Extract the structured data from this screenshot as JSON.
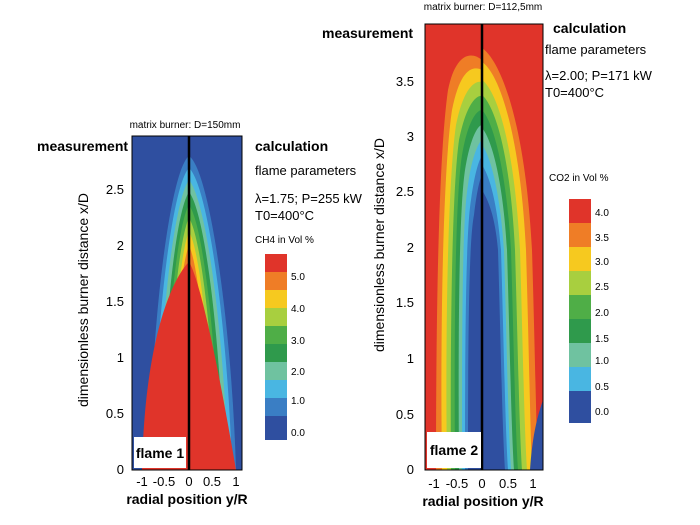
{
  "chart_data": [
    {
      "type": "heatmap",
      "subtitle": "matrix burner: D=150mm",
      "measurement_label": "measurement",
      "calculation_label": "calculation",
      "params_title": "flame parameters",
      "params_line1": "λ=1.75; P=255 kW",
      "params_line2": "T0=400°C",
      "flame_label": "flame 1",
      "xlabel": "radial position y/R",
      "ylabel": "dimensionless burner distance x/D",
      "xlim": [
        -1.2,
        1.2
      ],
      "ylim": [
        0,
        2.95
      ],
      "x_ticks": [
        "-1",
        "-0.5",
        "0",
        "0.5",
        "1"
      ],
      "y_ticks": [
        "0",
        "0.5",
        "1",
        "1.5",
        "2",
        "2.5"
      ],
      "colorbar_title": "CH4 in Vol %",
      "colorbar_ticks": [
        "5.0",
        "4.0",
        "3.0",
        "2.0",
        "1.0",
        "0.0"
      ],
      "colorbar_colors": [
        "#e0342a",
        "#ef7d26",
        "#f6c91f",
        "#a8cf3f",
        "#4fae47",
        "#2f9a4c",
        "#6fc2a0",
        "#49b6e2",
        "#3a7ec4",
        "#2f4fa0"
      ]
    },
    {
      "type": "heatmap",
      "subtitle": "matrix burner: D=112,5mm",
      "measurement_label": "measurement",
      "calculation_label": "calculation",
      "params_title": "flame parameters",
      "params_line1": "λ=2.00; P=171 kW",
      "params_line2": "T0=400°C",
      "flame_label": "flame 2",
      "xlabel": "radial position y/R",
      "ylabel": "dimensionless burner distance x/D",
      "xlim": [
        -1.2,
        1.2
      ],
      "ylim": [
        0,
        4.0
      ],
      "x_ticks": [
        "-1",
        "-0.5",
        "0",
        "0.5",
        "1"
      ],
      "y_ticks": [
        "0",
        "0.5",
        "1",
        "1.5",
        "2",
        "2.5",
        "3",
        "3.5"
      ],
      "colorbar_title": "CO2 in Vol %",
      "colorbar_ticks": [
        "4.0",
        "3.5",
        "3.0",
        "2.5",
        "2.0",
        "1.5",
        "1.0",
        "0.5",
        "0.0"
      ],
      "colorbar_colors": [
        "#e0342a",
        "#ef7d26",
        "#f6c91f",
        "#a8cf3f",
        "#4fae47",
        "#2f9a4c",
        "#6fc2a0",
        "#49b6e2",
        "#3a7ec4",
        "#2f4fa0"
      ]
    }
  ]
}
